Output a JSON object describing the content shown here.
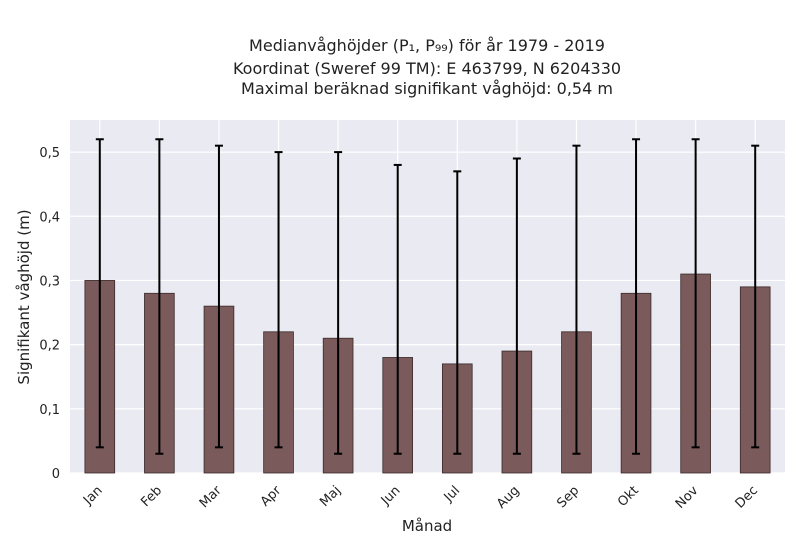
{
  "chart_data": {
    "type": "bar",
    "title_lines": [
      "Medianvåghöjder (P₁, P₉₉) för år 1979 - 2019",
      "Koordinat (Sweref 99 TM): E 463799, N 6204330",
      "Maximal beräknad signifikant våghöjd: 0,54 m"
    ],
    "xlabel": "Månad",
    "ylabel": "Signifikant våghöjd (m)",
    "categories": [
      "Jan",
      "Feb",
      "Mar",
      "Apr",
      "Maj",
      "Jun",
      "Jul",
      "Aug",
      "Sep",
      "Okt",
      "Nov",
      "Dec"
    ],
    "values": [
      0.3,
      0.28,
      0.26,
      0.22,
      0.21,
      0.18,
      0.17,
      0.19,
      0.22,
      0.28,
      0.31,
      0.29
    ],
    "p1": [
      0.04,
      0.03,
      0.04,
      0.04,
      0.03,
      0.03,
      0.03,
      0.03,
      0.03,
      0.03,
      0.04,
      0.04
    ],
    "p99": [
      0.52,
      0.52,
      0.51,
      0.5,
      0.5,
      0.48,
      0.47,
      0.49,
      0.51,
      0.52,
      0.52,
      0.51
    ],
    "ylim": [
      0,
      0.55
    ],
    "yticks": [
      0,
      0.1,
      0.2,
      0.3,
      0.4,
      0.5
    ],
    "ytick_labels": [
      "0",
      "0,1",
      "0,2",
      "0,3",
      "0,4",
      "0,5"
    ],
    "grid": true,
    "colors": {
      "bar": "#7a5a5a",
      "plot_background": "#eaeaf2",
      "error_bar": "#000000"
    }
  }
}
